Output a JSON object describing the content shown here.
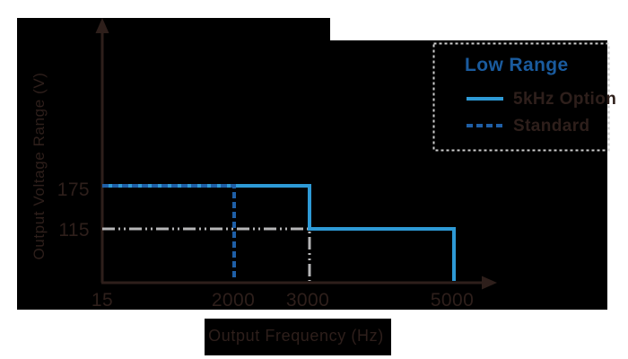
{
  "page": {
    "background_color": "#FFFFFF",
    "tile_color": "#000000"
  },
  "chart_data": {
    "type": "line",
    "title": "",
    "xlabel": "Output Frequency (Hz)",
    "ylabel": "Output Voltage Range (V)",
    "x_ticks": [
      "15",
      "2000",
      "3000",
      "5000"
    ],
    "y_ticks": [
      "115",
      "175"
    ],
    "x_range": [
      15,
      5000
    ],
    "y_range": [
      0,
      200
    ],
    "grid": false,
    "legend": {
      "title": "Low Range",
      "title_color": "#1A5B9E",
      "position": "top-right",
      "border_style": "dashed",
      "border_color": "#CCCCCC"
    },
    "series": [
      {
        "name": "5kHz Option",
        "line_style": "solid",
        "color": "#2E9AD6",
        "points": [
          [
            15,
            175
          ],
          [
            3000,
            175
          ],
          [
            3000,
            115
          ],
          [
            5000,
            115
          ],
          [
            5000,
            0
          ]
        ]
      },
      {
        "name": "Standard",
        "line_style": "dashed",
        "color": "#1F5FA6",
        "points": [
          [
            15,
            175
          ],
          [
            2000,
            175
          ],
          [
            2000,
            0
          ]
        ]
      }
    ],
    "guides": [
      {
        "name": "115V-level-guide",
        "line_style": "dash-dot-dot",
        "color": "#B5B5B6",
        "points": [
          [
            15,
            115
          ],
          [
            3000,
            115
          ],
          [
            3000,
            0
          ]
        ]
      }
    ],
    "axis_color": "#2E1F1B"
  }
}
